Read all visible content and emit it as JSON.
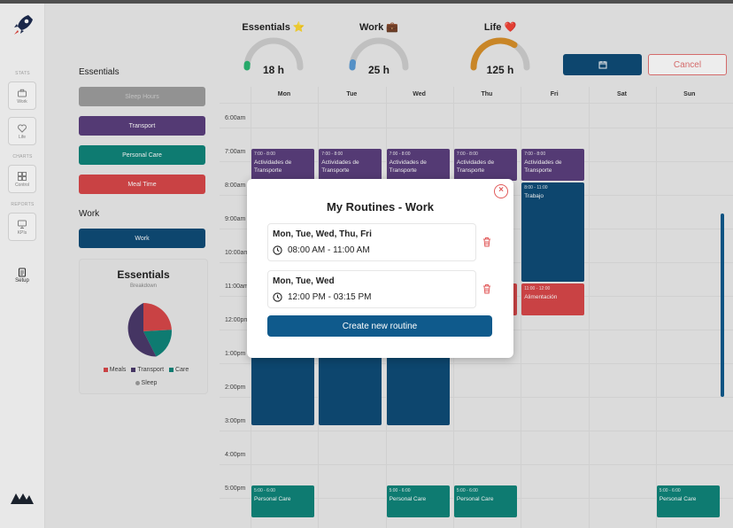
{
  "rail": {
    "sections": [
      "STATS",
      "CHARTS",
      "REPORTS"
    ],
    "items": [
      {
        "label": "Work",
        "icon": "briefcase-icon"
      },
      {
        "label": "Life",
        "icon": "heart-icon"
      },
      {
        "label": "Control",
        "icon": "grid-icon"
      },
      {
        "label": "KPIs",
        "icon": "monitor-icon"
      }
    ],
    "setup_label": "Setup"
  },
  "categories": {
    "essentials_heading": "Essentials",
    "essentials": [
      {
        "label": "Sleep Hours",
        "color": "#9e9e9e",
        "text_color": "#d0d0d0"
      },
      {
        "label": "Transport",
        "color": "#5b3f7d",
        "text_color": "#ffffff"
      },
      {
        "label": "Personal Care",
        "color": "#10857a",
        "text_color": "#ffffff"
      },
      {
        "label": "Meal Time",
        "color": "#d9484a",
        "text_color": "#ffffff"
      }
    ],
    "work_heading": "Work",
    "work": [
      {
        "label": "Work",
        "color": "#0f4c77",
        "text_color": "#ffffff"
      }
    ]
  },
  "breakdown": {
    "title": "Essentials",
    "subtitle": "Breakdown",
    "legend": [
      {
        "label": "Meals",
        "color": "#d9484a"
      },
      {
        "label": "Transport",
        "color": "#4b3a6b"
      },
      {
        "label": "Care",
        "color": "#10857a"
      },
      {
        "label": "Sleep",
        "color": "#9e9e9e"
      }
    ]
  },
  "gauges": [
    {
      "title": "Essentials",
      "emoji": "⭐",
      "value": "18 h",
      "fraction": 0.04,
      "color": "#2bb673"
    },
    {
      "title": "Work",
      "emoji": "💼",
      "value": "25 h",
      "fraction": 0.06,
      "color": "#5b9bd5"
    },
    {
      "title": "Life",
      "emoji": "❤️",
      "value": "125 h",
      "fraction": 0.68,
      "color": "#d9912b"
    }
  ],
  "toolbar": {
    "cancel_label": "Cancel",
    "calendar_icon": "calendar-icon"
  },
  "calendar": {
    "days": [
      "Mon",
      "Tue",
      "Wed",
      "Thu",
      "Fri",
      "Sat",
      "Sun"
    ],
    "times": [
      "6:00am",
      "7:00am",
      "8:00am",
      "9:00am",
      "10:00am",
      "11:00am",
      "12:00pm",
      "1:00pm",
      "2:00pm",
      "3:00pm",
      "4:00pm",
      "5:00pm"
    ],
    "events": [
      {
        "day": 0,
        "time": "7:00 - 8:00",
        "name": "Actividades de Transporte",
        "start": 7.0,
        "end": 8.0,
        "color": "#5b3f7d"
      },
      {
        "day": 1,
        "time": "7:00 - 8:00",
        "name": "Actividades de Transporte",
        "start": 7.0,
        "end": 8.0,
        "color": "#5b3f7d"
      },
      {
        "day": 2,
        "time": "7:00 - 8:00",
        "name": "Actividades de Transporte",
        "start": 7.0,
        "end": 8.0,
        "color": "#5b3f7d"
      },
      {
        "day": 3,
        "time": "7:00 - 8:00",
        "name": "Actividades de Transporte",
        "start": 7.0,
        "end": 8.0,
        "color": "#5b3f7d"
      },
      {
        "day": 4,
        "time": "7:00 - 8:00",
        "name": "Actividades de Transporte",
        "start": 7.0,
        "end": 8.0,
        "color": "#5b3f7d"
      },
      {
        "day": 4,
        "time": "8:00 - 11:00",
        "name": "Trabajo",
        "start": 8.0,
        "end": 11.0,
        "color": "#0f4c77"
      },
      {
        "day": 4,
        "time": "11:00 - 12:00",
        "name": "Alimentación",
        "start": 11.0,
        "end": 12.0,
        "color": "#d9484a"
      },
      {
        "day": 3,
        "time": "",
        "name": "",
        "start": 11.0,
        "end": 12.0,
        "color": "#d9484a"
      },
      {
        "day": 0,
        "time": "",
        "name": "",
        "start": 12.0,
        "end": 15.25,
        "color": "#0f4c77"
      },
      {
        "day": 1,
        "time": "",
        "name": "",
        "start": 12.0,
        "end": 15.25,
        "color": "#0f4c77"
      },
      {
        "day": 2,
        "time": "",
        "name": "",
        "start": 12.0,
        "end": 15.25,
        "color": "#0f4c77"
      },
      {
        "day": 0,
        "time": "5:00 - 6:00",
        "name": "Personal Care",
        "start": 17.0,
        "end": 18.0,
        "color": "#10857a"
      },
      {
        "day": 2,
        "time": "5:00 - 6:00",
        "name": "Personal Care",
        "start": 17.0,
        "end": 18.0,
        "color": "#10857a"
      },
      {
        "day": 3,
        "time": "5:00 - 6:00",
        "name": "Personal Care",
        "start": 17.0,
        "end": 18.0,
        "color": "#10857a"
      },
      {
        "day": 6,
        "time": "5:00 - 6:00",
        "name": "Personal Care",
        "start": 17.0,
        "end": 18.0,
        "color": "#10857a"
      }
    ]
  },
  "modal": {
    "title": "My Routines - Work",
    "close_icon": "close-icon",
    "routines": [
      {
        "days": "Mon, Tue, Wed, Thu, Fri",
        "time": "08:00 AM - 11:00 AM"
      },
      {
        "days": "Mon, Tue, Wed",
        "time": "12:00 PM - 03:15 PM"
      }
    ],
    "create_label": "Create new routine"
  }
}
